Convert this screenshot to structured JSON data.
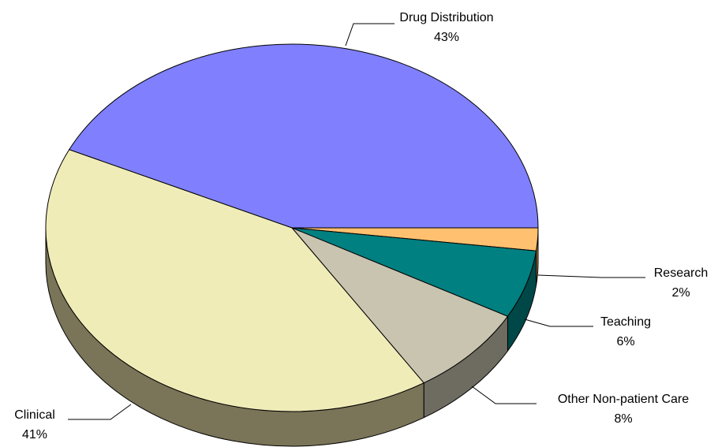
{
  "chart_data": {
    "type": "pie",
    "style": "3d",
    "slices": [
      {
        "label": "Drug Distribution",
        "value": 43,
        "value_label": "43%",
        "color": "#8080ff",
        "side_color": "#4d4d99"
      },
      {
        "label": "Research",
        "value": 2,
        "value_label": "2%",
        "color": "#ffc070",
        "side_color": "#99733f"
      },
      {
        "label": "Teaching",
        "value": 6,
        "value_label": "6%",
        "color": "#008080",
        "side_color": "#004848"
      },
      {
        "label": "Other Non-patient Care",
        "value": 8,
        "value_label": "8%",
        "color": "#c8c4b0",
        "side_color": "#6e6c60"
      },
      {
        "label": "Clinical",
        "value": 41,
        "value_label": "41%",
        "color": "#f0ecb8",
        "side_color": "#7a7458"
      }
    ]
  }
}
